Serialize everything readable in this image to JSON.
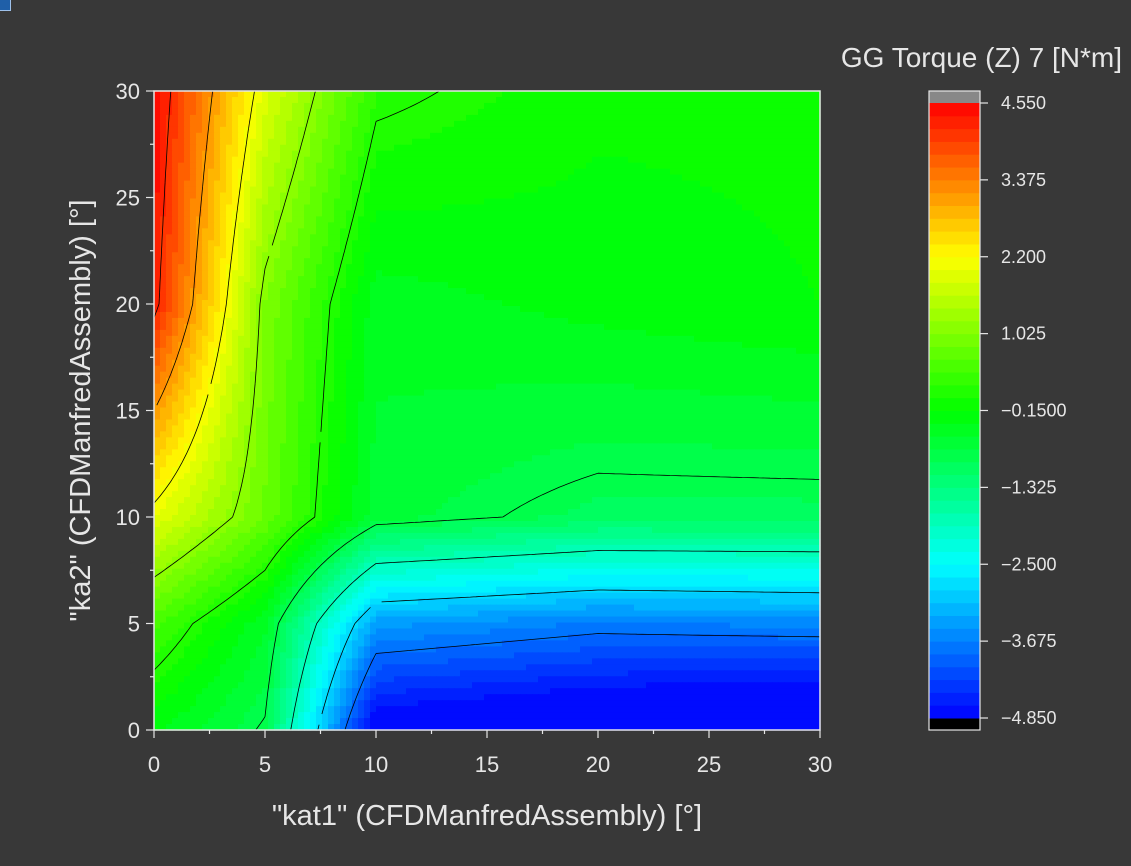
{
  "chart_data": {
    "type": "heatmap",
    "subtype": "filled-contour",
    "title": "GG Torque (Z) 7 [N*m]",
    "xlabel": "\"kat1\" (CFDManfredAssembly) [°]",
    "ylabel": "\"ka2\" (CFDManfredAssembly) [°]",
    "xlim": [
      0,
      30
    ],
    "ylim": [
      0,
      30
    ],
    "x_ticks": [
      "0",
      "5",
      "10",
      "15",
      "20",
      "25",
      "30"
    ],
    "y_ticks": [
      "0",
      "5",
      "10",
      "15",
      "20",
      "25",
      "30"
    ],
    "x": [
      0,
      5,
      10,
      20,
      30
    ],
    "y": [
      0,
      5,
      10,
      20,
      30
    ],
    "z": [
      [
        -0.3,
        -0.9,
        -5.0,
        -5.3,
        -5.6
      ],
      [
        0.5,
        -0.5,
        -3.4,
        -3.7,
        -3.6
      ],
      [
        2.0,
        0.8,
        -0.65,
        -1.0,
        -1.0
      ],
      [
        4.3,
        1.0,
        -0.45,
        -0.27,
        -0.15
      ],
      [
        4.55,
        1.9,
        0.25,
        -0.1,
        -0.1
      ]
    ],
    "colorbar": {
      "min": -4.85,
      "max": 4.55,
      "tick_labels": [
        "4.550",
        "3.375",
        "2.200",
        "1.025",
        "−0.1500",
        "−1.325",
        "−2.500",
        "−3.675",
        "−4.850"
      ],
      "colormap": [
        "#0000ff",
        "#00ffff",
        "#00ff00",
        "#ffff00",
        "#ff0000"
      ],
      "over_color": "#888888",
      "under_color": "#000000"
    },
    "grid": false,
    "contour_lines": true
  }
}
